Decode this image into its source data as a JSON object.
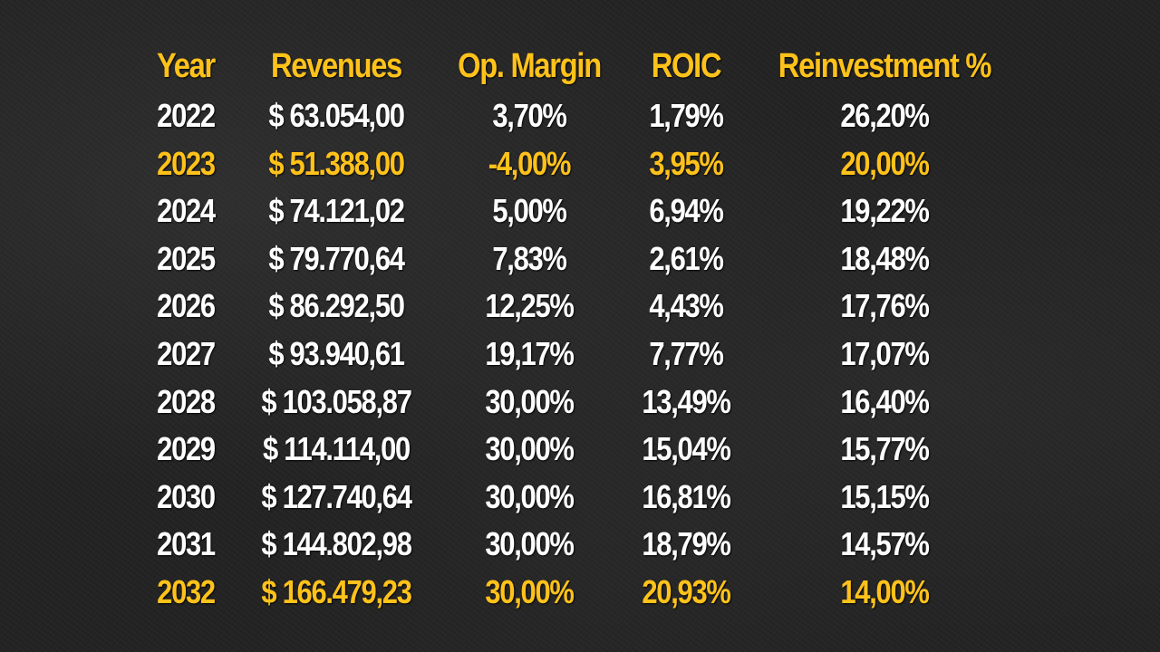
{
  "colors": {
    "text": "#FFFFFF",
    "highlight": "#FFC21A",
    "background": "#232323"
  },
  "chart_data": {
    "type": "table",
    "columns": [
      "Year",
      "Revenues",
      "Op. Margin",
      "ROIC",
      "Reinvestment %"
    ],
    "rows": [
      {
        "year": "2022",
        "revenues": "$ 63.054,00",
        "op_margin": "3,70%",
        "roic": "1,79%",
        "reinvestment": "26,20%",
        "highlight": false
      },
      {
        "year": "2023",
        "revenues": "$ 51.388,00",
        "op_margin": "-4,00%",
        "roic": "3,95%",
        "reinvestment": "20,00%",
        "highlight": true
      },
      {
        "year": "2024",
        "revenues": "$ 74.121,02",
        "op_margin": "5,00%",
        "roic": "6,94%",
        "reinvestment": "19,22%",
        "highlight": false
      },
      {
        "year": "2025",
        "revenues": "$ 79.770,64",
        "op_margin": "7,83%",
        "roic": "2,61%",
        "reinvestment": "18,48%",
        "highlight": false
      },
      {
        "year": "2026",
        "revenues": "$ 86.292,50",
        "op_margin": "12,25%",
        "roic": "4,43%",
        "reinvestment": "17,76%",
        "highlight": false
      },
      {
        "year": "2027",
        "revenues": "$ 93.940,61",
        "op_margin": "19,17%",
        "roic": "7,77%",
        "reinvestment": "17,07%",
        "highlight": false
      },
      {
        "year": "2028",
        "revenues": "$ 103.058,87",
        "op_margin": "30,00%",
        "roic": "13,49%",
        "reinvestment": "16,40%",
        "highlight": false
      },
      {
        "year": "2029",
        "revenues": "$ 114.114,00",
        "op_margin": "30,00%",
        "roic": "15,04%",
        "reinvestment": "15,77%",
        "highlight": false
      },
      {
        "year": "2030",
        "revenues": "$ 127.740,64",
        "op_margin": "30,00%",
        "roic": "16,81%",
        "reinvestment": "15,15%",
        "highlight": false
      },
      {
        "year": "2031",
        "revenues": "$ 144.802,98",
        "op_margin": "30,00%",
        "roic": "18,79%",
        "reinvestment": "14,57%",
        "highlight": false
      },
      {
        "year": "2032",
        "revenues": "$ 166.479,23",
        "op_margin": "30,00%",
        "roic": "20,93%",
        "reinvestment": "14,00%",
        "highlight": true
      }
    ]
  }
}
